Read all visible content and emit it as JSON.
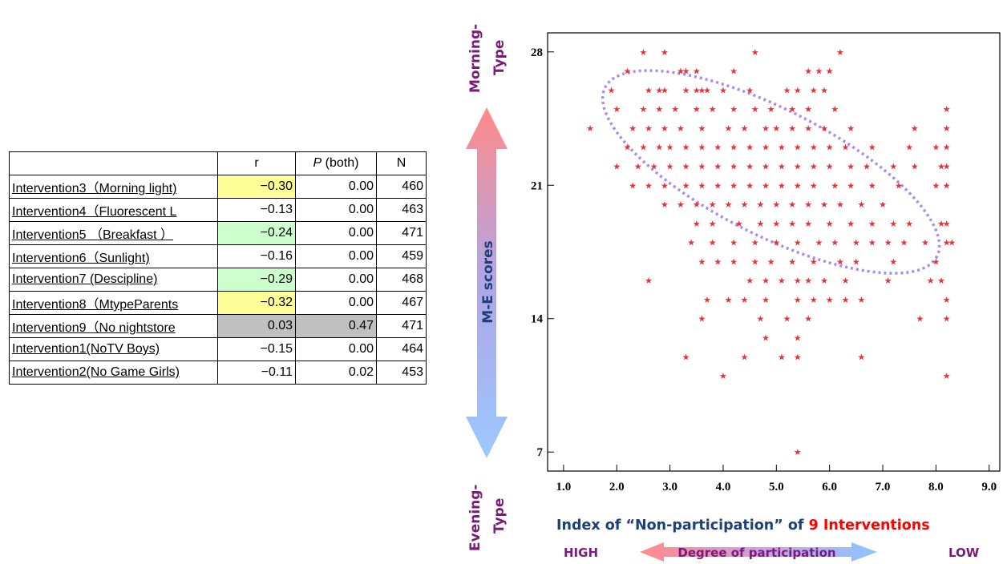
{
  "table": {
    "headers": [
      "",
      "r",
      "P",
      "(both)",
      "N"
    ],
    "rows": [
      {
        "label": "Intervention3（Morning light)",
        "r": "−0.30",
        "p": "0.00",
        "n": "460",
        "highlight": "#ffff99"
      },
      {
        "label": "Intervention4（Fluorescent L",
        "r": "−0.13",
        "p": "0.00",
        "n": "463",
        "highlight": ""
      },
      {
        "label": "Intervention5 （Breakfast ）",
        "r": "−0.24",
        "p": "0.00",
        "n": "471",
        "highlight": "#ccffcc"
      },
      {
        "label": "Intervention6（Sunlight)",
        "r": "−0.16",
        "p": "0.00",
        "n": "459",
        "highlight": ""
      },
      {
        "label": "Intervention7 (Descipline)",
        "r": "−0.29",
        "p": "0.00",
        "n": "468",
        "highlight": "#ccffcc"
      },
      {
        "label": "Intervention8（MtypeParents",
        "r": "−0.32",
        "p": "0.00",
        "n": "467",
        "highlight": "#ffff99"
      },
      {
        "label": "Intervention9（No nightstore",
        "r": "0.03",
        "p": "0.47",
        "n": "471",
        "highlight": "#c0c0c0"
      },
      {
        "label": "Intervention1(NoTV Boys)",
        "r": "−0.15",
        "p": "0.00",
        "n": "464",
        "highlight": ""
      },
      {
        "label": "Intervention2(No Game Girls)",
        "r": "−0.11",
        "p": "0.02",
        "n": "453",
        "highlight": ""
      }
    ]
  },
  "labels": {
    "morning_type": [
      "Morning-",
      "Type"
    ],
    "evening_type": [
      "Evening-",
      "Type"
    ],
    "y_axis": "M-E scores",
    "x_axis_part1": "Index of “Non-participation” of ",
    "x_axis_part2": "9 Interventions",
    "high": "HIGH",
    "low": "LOW",
    "degree": "Degree of participation"
  },
  "colors": {
    "points": "#e8303a",
    "ellipse": "#a98af2",
    "x_label": "#1f3f7a",
    "x_label_accent": "#ff0000",
    "side_labels": "#7a1a7a",
    "arrow_top": "#ff8a8a",
    "arrow_bottom": "#9cc8ff"
  },
  "chart_data": {
    "type": "scatter",
    "xlim": [
      0.7,
      9.2
    ],
    "ylim": [
      6,
      29
    ],
    "xticks": [
      "1.0",
      "2.0",
      "3.0",
      "4.0",
      "5.0",
      "6.0",
      "7.0",
      "8.0",
      "9.0"
    ],
    "xtick_values": [
      1,
      2,
      3,
      4,
      5,
      6,
      7,
      8,
      9
    ],
    "yticks": [
      "7",
      "14",
      "21",
      "28"
    ],
    "ytick_values": [
      7,
      14,
      21,
      28
    ],
    "ellipse": {
      "cx": 4.9,
      "cy": 21.7,
      "rx": 3.5,
      "ry": 3.3,
      "rotation_deg": 27
    },
    "points": [
      [
        2.5,
        28
      ],
      [
        2.9,
        28
      ],
      [
        4.6,
        28
      ],
      [
        6.2,
        28
      ],
      [
        2.2,
        27
      ],
      [
        3.2,
        27
      ],
      [
        3.3,
        27
      ],
      [
        3.5,
        27
      ],
      [
        4.2,
        27
      ],
      [
        5.6,
        27
      ],
      [
        5.8,
        27
      ],
      [
        6.0,
        27
      ],
      [
        1.9,
        26
      ],
      [
        2.6,
        26
      ],
      [
        2.8,
        26
      ],
      [
        2.9,
        26
      ],
      [
        3.3,
        26
      ],
      [
        3.5,
        26
      ],
      [
        3.6,
        26
      ],
      [
        3.7,
        26
      ],
      [
        4.0,
        26
      ],
      [
        4.5,
        26
      ],
      [
        5.2,
        26
      ],
      [
        5.4,
        26
      ],
      [
        5.7,
        26
      ],
      [
        5.9,
        26
      ],
      [
        2.0,
        25
      ],
      [
        2.5,
        25
      ],
      [
        2.8,
        25
      ],
      [
        3.1,
        25
      ],
      [
        3.5,
        25
      ],
      [
        3.8,
        25
      ],
      [
        4.2,
        25
      ],
      [
        4.6,
        25
      ],
      [
        4.9,
        25
      ],
      [
        5.3,
        25
      ],
      [
        5.6,
        25
      ],
      [
        6.1,
        25
      ],
      [
        8.2,
        25
      ],
      [
        1.5,
        24
      ],
      [
        2.3,
        24
      ],
      [
        2.6,
        24
      ],
      [
        2.9,
        24
      ],
      [
        3.2,
        24
      ],
      [
        3.6,
        24
      ],
      [
        4.1,
        24
      ],
      [
        4.4,
        24
      ],
      [
        4.8,
        24
      ],
      [
        5.0,
        24
      ],
      [
        5.3,
        24
      ],
      [
        5.6,
        24
      ],
      [
        5.9,
        24
      ],
      [
        6.4,
        24
      ],
      [
        7.6,
        24
      ],
      [
        8.2,
        24
      ],
      [
        2.2,
        23
      ],
      [
        2.5,
        23
      ],
      [
        2.8,
        23
      ],
      [
        3.0,
        23
      ],
      [
        3.3,
        23
      ],
      [
        3.6,
        23
      ],
      [
        3.9,
        23
      ],
      [
        4.2,
        23
      ],
      [
        4.5,
        23
      ],
      [
        4.8,
        23
      ],
      [
        5.1,
        23
      ],
      [
        5.4,
        23
      ],
      [
        5.7,
        23
      ],
      [
        6.0,
        23
      ],
      [
        6.3,
        23
      ],
      [
        6.8,
        23
      ],
      [
        7.5,
        23
      ],
      [
        8.0,
        23
      ],
      [
        8.2,
        23
      ],
      [
        2.0,
        22
      ],
      [
        2.4,
        22
      ],
      [
        2.7,
        22
      ],
      [
        3.0,
        22
      ],
      [
        3.3,
        22
      ],
      [
        3.6,
        22
      ],
      [
        3.9,
        22
      ],
      [
        4.2,
        22
      ],
      [
        4.5,
        22
      ],
      [
        4.8,
        22
      ],
      [
        5.1,
        22
      ],
      [
        5.4,
        22
      ],
      [
        5.7,
        22
      ],
      [
        6.0,
        22
      ],
      [
        6.4,
        22
      ],
      [
        6.7,
        22
      ],
      [
        7.2,
        22
      ],
      [
        7.6,
        22
      ],
      [
        8.1,
        22
      ],
      [
        8.2,
        22
      ],
      [
        2.3,
        21
      ],
      [
        2.6,
        21
      ],
      [
        2.9,
        21
      ],
      [
        3.3,
        21
      ],
      [
        3.6,
        21
      ],
      [
        3.9,
        21
      ],
      [
        4.2,
        21
      ],
      [
        4.5,
        21
      ],
      [
        4.8,
        21
      ],
      [
        5.1,
        21
      ],
      [
        5.4,
        21
      ],
      [
        5.7,
        21
      ],
      [
        6.1,
        21
      ],
      [
        6.4,
        21
      ],
      [
        6.8,
        21
      ],
      [
        7.3,
        21
      ],
      [
        8.0,
        21
      ],
      [
        8.2,
        21
      ],
      [
        2.9,
        20
      ],
      [
        3.2,
        20
      ],
      [
        3.5,
        20
      ],
      [
        3.8,
        20
      ],
      [
        4.1,
        20
      ],
      [
        4.4,
        20
      ],
      [
        4.7,
        20
      ],
      [
        5.0,
        20
      ],
      [
        5.3,
        20
      ],
      [
        5.6,
        20
      ],
      [
        5.9,
        20
      ],
      [
        6.2,
        20
      ],
      [
        6.6,
        20
      ],
      [
        7.0,
        20
      ],
      [
        3.5,
        19
      ],
      [
        3.8,
        19
      ],
      [
        4.3,
        19
      ],
      [
        4.7,
        19
      ],
      [
        5.0,
        19
      ],
      [
        5.3,
        19
      ],
      [
        5.6,
        19
      ],
      [
        6.0,
        19
      ],
      [
        6.4,
        19
      ],
      [
        6.8,
        19
      ],
      [
        7.2,
        19
      ],
      [
        7.5,
        19
      ],
      [
        8.1,
        19
      ],
      [
        8.2,
        19
      ],
      [
        3.4,
        18
      ],
      [
        3.8,
        18
      ],
      [
        4.2,
        18
      ],
      [
        4.6,
        18
      ],
      [
        5.0,
        18
      ],
      [
        5.4,
        18
      ],
      [
        5.8,
        18
      ],
      [
        6.1,
        18
      ],
      [
        6.5,
        18
      ],
      [
        6.8,
        18
      ],
      [
        7.1,
        18
      ],
      [
        7.4,
        18
      ],
      [
        7.8,
        18
      ],
      [
        8.2,
        18
      ],
      [
        8.3,
        18
      ],
      [
        3.6,
        17
      ],
      [
        3.9,
        17
      ],
      [
        4.2,
        17
      ],
      [
        4.6,
        17
      ],
      [
        4.9,
        17
      ],
      [
        5.3,
        17
      ],
      [
        5.7,
        17
      ],
      [
        6.2,
        17
      ],
      [
        6.5,
        17
      ],
      [
        7.2,
        17
      ],
      [
        8.0,
        17
      ],
      [
        2.6,
        16
      ],
      [
        4.5,
        16
      ],
      [
        4.8,
        16
      ],
      [
        5.1,
        16
      ],
      [
        5.4,
        16
      ],
      [
        5.6,
        16
      ],
      [
        5.9,
        16
      ],
      [
        6.3,
        16
      ],
      [
        7.1,
        16
      ],
      [
        7.9,
        16
      ],
      [
        8.1,
        16
      ],
      [
        3.7,
        15
      ],
      [
        4.1,
        15
      ],
      [
        4.4,
        15
      ],
      [
        4.8,
        15
      ],
      [
        5.4,
        15
      ],
      [
        5.7,
        15
      ],
      [
        6.0,
        15
      ],
      [
        6.3,
        15
      ],
      [
        6.6,
        15
      ],
      [
        8.2,
        15
      ],
      [
        3.6,
        14
      ],
      [
        4.7,
        14
      ],
      [
        5.2,
        14
      ],
      [
        5.6,
        14
      ],
      [
        7.7,
        14
      ],
      [
        8.2,
        14
      ],
      [
        4.8,
        13
      ],
      [
        5.4,
        13
      ],
      [
        3.3,
        12
      ],
      [
        4.4,
        12
      ],
      [
        5.1,
        12
      ],
      [
        5.4,
        12
      ],
      [
        6.6,
        12
      ],
      [
        4.0,
        11
      ],
      [
        8.2,
        11
      ],
      [
        5.4,
        7
      ]
    ]
  }
}
